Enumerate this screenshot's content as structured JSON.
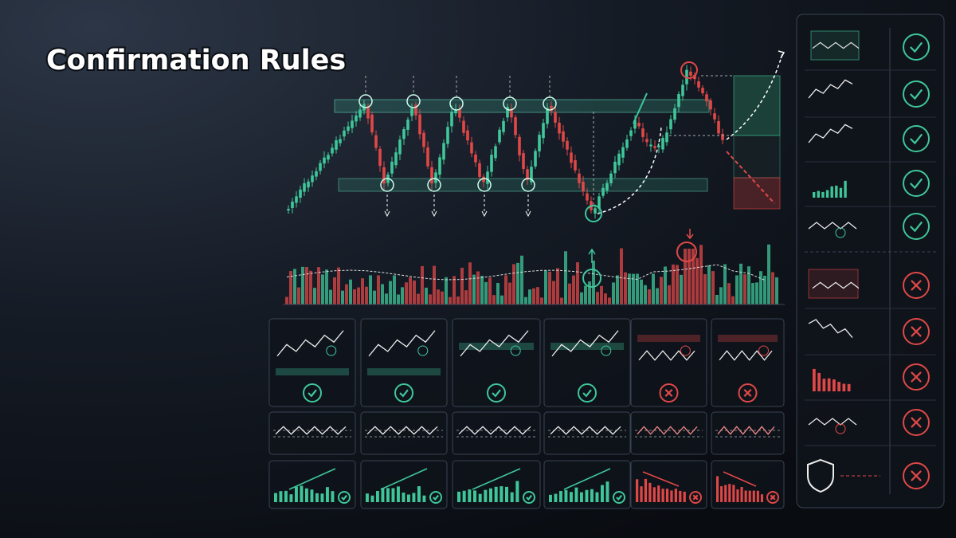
{
  "header": {
    "title": "Confirmation Rules"
  }
}
